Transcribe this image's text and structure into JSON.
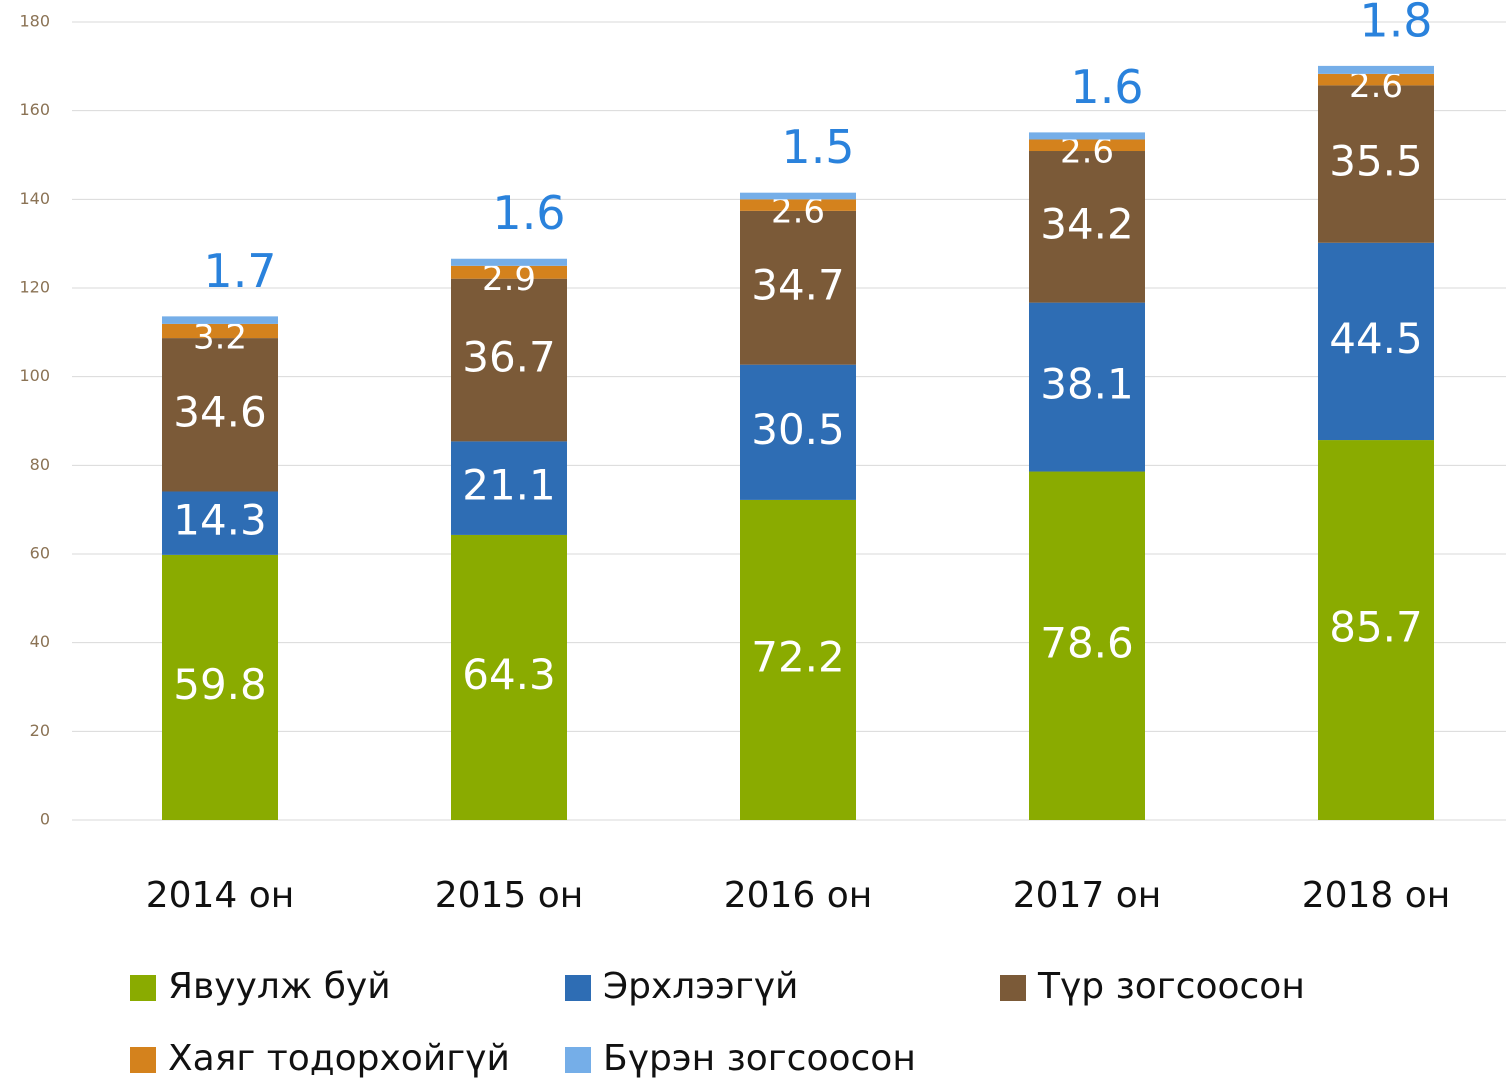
{
  "chart_data": {
    "type": "stacked_bar",
    "categories": [
      "2014 он",
      "2015 он",
      "2016 он",
      "2017 он",
      "2018 он"
    ],
    "series": [
      {
        "name": "Явуулж буй",
        "color": "#8aab00",
        "values": [
          59.8,
          64.3,
          72.2,
          78.6,
          85.7
        ]
      },
      {
        "name": "Эрхлээгүй",
        "color": "#2e6db4",
        "values": [
          14.3,
          21.1,
          30.5,
          38.1,
          44.5
        ]
      },
      {
        "name": "Түр зогсоосон",
        "color": "#7b5a38",
        "values": [
          34.6,
          36.7,
          34.7,
          34.2,
          35.5
        ]
      },
      {
        "name": "Хаяг тодорхойгүй",
        "color": "#d4821d",
        "values": [
          3.2,
          2.9,
          2.6,
          2.6,
          2.6
        ]
      },
      {
        "name": "Бүрэн зогсоосон",
        "color": "#75aee8",
        "values": [
          1.7,
          1.6,
          1.5,
          1.6,
          1.8
        ]
      }
    ],
    "ylim": [
      0,
      180
    ],
    "yticks": [
      0,
      20,
      40,
      60,
      80,
      100,
      120,
      140,
      160,
      180
    ],
    "grid": true
  }
}
